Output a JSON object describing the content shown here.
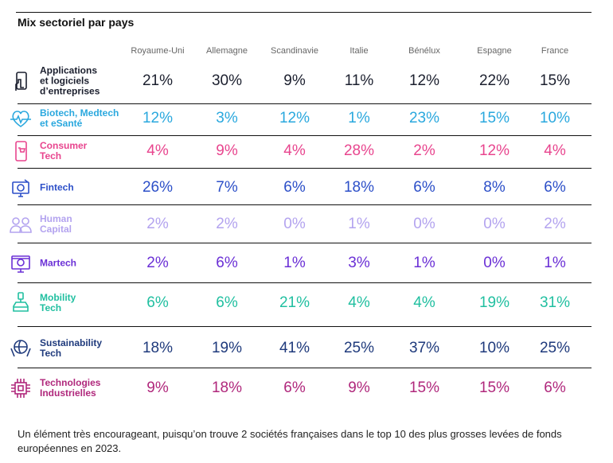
{
  "title": "Mix sectoriel par pays",
  "columns": [
    "Royaume-Uni",
    "Allemagne",
    "Scandinavie",
    "Italie",
    "Bénélux",
    "Espagne",
    "France"
  ],
  "rows": [
    {
      "label": [
        "Applications",
        "et logiciels",
        "d’entreprises"
      ],
      "icon": "phone-touch-icon",
      "color": "#1b1f2e",
      "values": [
        "21%",
        "30%",
        "9%",
        "11%",
        "12%",
        "22%",
        "15%"
      ]
    },
    {
      "label": [
        "Biotech, Medtech",
        "et eSanté"
      ],
      "icon": "heart-pulse-icon",
      "color": "#2aa8de",
      "values": [
        "12%",
        "3%",
        "12%",
        "1%",
        "23%",
        "15%",
        "10%"
      ]
    },
    {
      "label": [
        "Consumer",
        "Tech"
      ],
      "icon": "phone-cart-icon",
      "color": "#e8458e",
      "values": [
        "4%",
        "9%",
        "4%",
        "28%",
        "2%",
        "12%",
        "4%"
      ]
    },
    {
      "label": [
        "Fintech"
      ],
      "icon": "monitor-coin-icon",
      "color": "#2c4fc8",
      "values": [
        "26%",
        "7%",
        "6%",
        "18%",
        "6%",
        "8%",
        "6%"
      ]
    },
    {
      "label": [
        "Human",
        "Capital"
      ],
      "icon": "people-icon",
      "color": "#b3a3ef",
      "values": [
        "2%",
        "2%",
        "0%",
        "1%",
        "0%",
        "0%",
        "2%"
      ]
    },
    {
      "label": [
        "Martech"
      ],
      "icon": "monitor-target-icon",
      "color": "#6b30d6",
      "values": [
        "2%",
        "6%",
        "1%",
        "3%",
        "1%",
        "0%",
        "1%"
      ]
    },
    {
      "label": [
        "Mobility",
        "Tech"
      ],
      "icon": "car-phone-icon",
      "color": "#20bfa0",
      "values": [
        "6%",
        "6%",
        "21%",
        "4%",
        "4%",
        "19%",
        "31%"
      ]
    },
    {
      "label": [
        "Sustainability",
        "Tech"
      ],
      "icon": "globe-hands-icon",
      "color": "#1f3a7c",
      "values": [
        "18%",
        "19%",
        "41%",
        "25%",
        "37%",
        "10%",
        "25%"
      ]
    },
    {
      "label": [
        "Technologies",
        "Industrielles"
      ],
      "icon": "chip-icon",
      "color": "#b0287c",
      "values": [
        "9%",
        "18%",
        "6%",
        "9%",
        "15%",
        "15%",
        "6%"
      ]
    }
  ],
  "footer": "Un élément très encourageant, puisqu’on trouve 2 sociétés françaises dans le top 10 des plus grosses levées de fonds européennes en 2023."
}
